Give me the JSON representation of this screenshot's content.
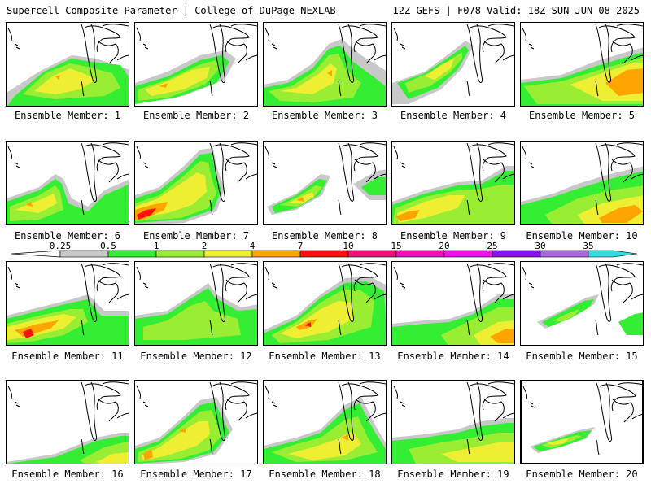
{
  "header": {
    "title_left": "Supercell Composite Parameter | College of DuPage NEXLAB",
    "title_right": "12Z GEFS | F078 Valid: 18Z SUN JUN 08 2025"
  },
  "panels": [
    {
      "caption": "Ensemble Member: 1"
    },
    {
      "caption": "Ensemble Member: 2"
    },
    {
      "caption": "Ensemble Member: 3"
    },
    {
      "caption": "Ensemble Member: 4"
    },
    {
      "caption": "Ensemble Member: 5"
    },
    {
      "caption": "Ensemble Member: 6"
    },
    {
      "caption": "Ensemble Member: 7"
    },
    {
      "caption": "Ensemble Member: 8"
    },
    {
      "caption": "Ensemble Member: 9"
    },
    {
      "caption": "Ensemble Member: 10"
    },
    {
      "caption": "Ensemble Member: 11"
    },
    {
      "caption": "Ensemble Member: 12"
    },
    {
      "caption": "Ensemble Member: 13"
    },
    {
      "caption": "Ensemble Member: 14"
    },
    {
      "caption": "Ensemble Member: 15"
    },
    {
      "caption": "Ensemble Member: 16"
    },
    {
      "caption": "Ensemble Member: 17"
    },
    {
      "caption": "Ensemble Member: 18"
    },
    {
      "caption": "Ensemble Member: 19"
    },
    {
      "caption": "Ensemble Member: 20"
    }
  ],
  "legend": {
    "labels": [
      "0.25",
      "0.5",
      "1",
      "2",
      "4",
      "7",
      "10",
      "15",
      "20",
      "25",
      "30",
      "35"
    ],
    "colors": [
      "#c8c8c8",
      "#33ee33",
      "#99ee33",
      "#eeee33",
      "#ffa500",
      "#ff1111",
      "#ee1177",
      "#ee11bb",
      "#ee11ee",
      "#8811ee",
      "#aa66dd",
      "#33dddd"
    ]
  }
}
